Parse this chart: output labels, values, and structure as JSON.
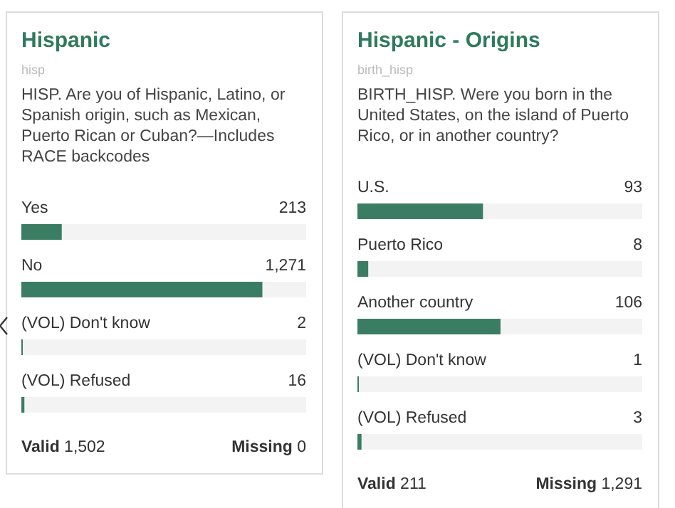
{
  "chart_data": [
    {
      "type": "bar",
      "orientation": "horizontal",
      "title": "Hispanic",
      "subtitle": "hisp",
      "annotations": [
        "HISP. Are you of Hispanic, Latino, or Spanish origin, such as Mexican, Puerto Rican or Cuban?—Includes RACE backcodes",
        "Valid 1,502",
        "Missing 0"
      ],
      "categories": [
        "Yes",
        "No",
        "(VOL) Don't know",
        "(VOL) Refused"
      ],
      "values": [
        213,
        1271,
        2,
        16
      ],
      "value_labels": [
        "213",
        "1,271",
        "2",
        "16"
      ],
      "color": "#3a7d63",
      "xlim": [
        0,
        1502
      ],
      "tick_labels": false
    },
    {
      "type": "bar",
      "orientation": "horizontal",
      "title": "Hispanic - Origins",
      "subtitle": "birth_hisp",
      "annotations": [
        "BIRTH_HISP. Were you born in the United States, on the island of Puerto Rico, or in another country?",
        "Valid 211",
        "Missing 1,291"
      ],
      "categories": [
        "U.S.",
        "Puerto Rico",
        "Another country",
        "(VOL) Don't know",
        "(VOL) Refused"
      ],
      "values": [
        93,
        8,
        106,
        1,
        3
      ],
      "value_labels": [
        "93",
        "8",
        "106",
        "1",
        "3"
      ],
      "color": "#3a7d63",
      "xlim": [
        0,
        211
      ],
      "tick_labels": false
    }
  ]
}
